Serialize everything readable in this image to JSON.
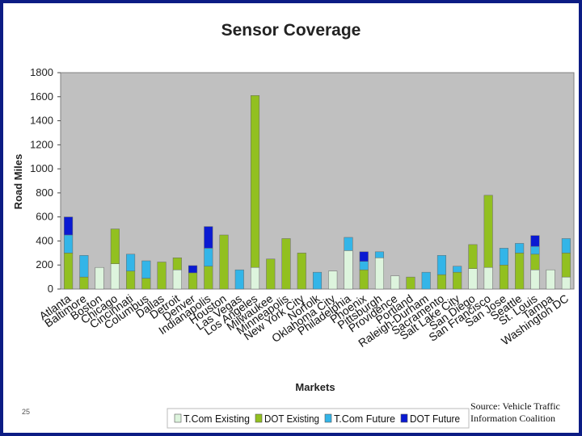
{
  "page_number": "25",
  "source": {
    "line1": "Source: Vehicle Traffic",
    "line2": "Information Coalition"
  },
  "colors": {
    "frame": "#0c1c84",
    "plot_background": "#c0c0c0",
    "T.Com Existing": "#ddf4dd",
    "DOT Existing": "#92c020",
    "T.Com Future": "#33b5e8",
    "DOT Future": "#0a1ad2"
  },
  "chart_data": {
    "type": "bar",
    "stacked": true,
    "title": "Sensor Coverage",
    "xlabel": "Markets",
    "ylabel": "Road Miles",
    "ylim": [
      0,
      1800
    ],
    "yticks": [
      0,
      200,
      400,
      600,
      800,
      1000,
      1200,
      1400,
      1600,
      1800
    ],
    "grid": false,
    "legend_position": "bottom",
    "categories": [
      "Atlanta",
      "Baltimore",
      "Boston",
      "Chicago",
      "Cincinnati",
      "Columbus",
      "Dallas",
      "Detroit",
      "Denver",
      "Indianapolis",
      "Houston",
      "Las Vegas",
      "Los Angeles",
      "Milwaukee",
      "Minneapolis",
      "New York City",
      "Norfolk",
      "Oklahoma City",
      "Philadelphia",
      "Phoenix",
      "Pittsburgh",
      "Providence",
      "Portland",
      "Raleigh-Durham",
      "Sacramento",
      "Salt Lake City",
      "San Diego",
      "San Francisco",
      "San Jose",
      "Seattle",
      "St. Louis",
      "Tampa",
      "Washington DC"
    ],
    "series": [
      {
        "name": "T.Com Existing",
        "values": [
          0,
          0,
          180,
          210,
          0,
          0,
          0,
          160,
          0,
          0,
          0,
          0,
          180,
          0,
          0,
          0,
          0,
          150,
          320,
          0,
          260,
          110,
          0,
          0,
          0,
          0,
          170,
          180,
          0,
          0,
          160,
          160,
          100
        ]
      },
      {
        "name": "DOT Existing",
        "values": [
          300,
          100,
          0,
          290,
          150,
          90,
          225,
          100,
          135,
          190,
          450,
          0,
          1430,
          250,
          420,
          300,
          0,
          0,
          0,
          160,
          0,
          0,
          100,
          0,
          120,
          140,
          200,
          600,
          200,
          300,
          130,
          0,
          200
        ]
      },
      {
        "name": "T.Com Future",
        "values": [
          150,
          180,
          0,
          0,
          140,
          145,
          0,
          0,
          0,
          150,
          0,
          160,
          0,
          0,
          0,
          0,
          140,
          0,
          110,
          70,
          50,
          0,
          0,
          140,
          160,
          50,
          0,
          0,
          140,
          80,
          65,
          0,
          120
        ]
      },
      {
        "name": "DOT Future",
        "values": [
          150,
          0,
          0,
          0,
          0,
          0,
          0,
          0,
          60,
          180,
          0,
          0,
          0,
          0,
          0,
          0,
          0,
          0,
          0,
          80,
          0,
          0,
          0,
          0,
          0,
          0,
          0,
          0,
          0,
          0,
          90,
          0,
          0
        ]
      }
    ]
  }
}
